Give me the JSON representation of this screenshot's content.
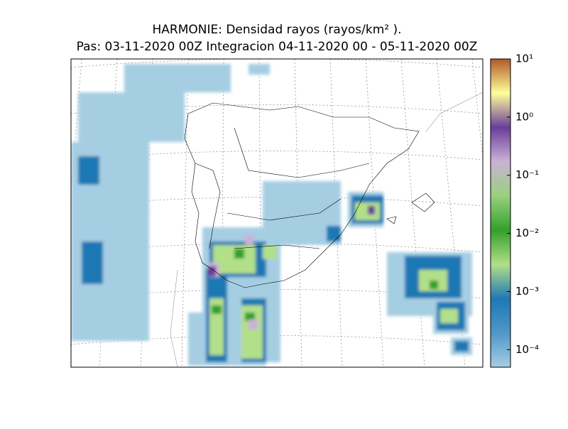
{
  "header": {
    "title": "HARMONIE: Densidad rayos  (rayos/km² ).",
    "subtitle": "Pas: 03-11-2020 00Z Integracion 04-11-2020 00 - 05-11-2020 00Z"
  },
  "colorbar": {
    "scale": "log",
    "lim": [
      5e-05,
      10
    ],
    "colors": [
      "#a6cee3",
      "#4f97c9",
      "#1f78b4",
      "#b2df8a",
      "#33a02c",
      "#98d17e",
      "#cab2d6",
      "#6a3d9a",
      "#ffff99",
      "#b15928"
    ],
    "ticks": [
      {
        "value": 10,
        "label": "10¹"
      },
      {
        "value": 1,
        "label": "10⁰"
      },
      {
        "value": 0.1,
        "label": "10⁻¹"
      },
      {
        "value": 0.01,
        "label": "10⁻²"
      },
      {
        "value": 0.001,
        "label": "10⁻³"
      },
      {
        "value": 0.0001,
        "label": "10⁻⁴"
      }
    ]
  }
}
